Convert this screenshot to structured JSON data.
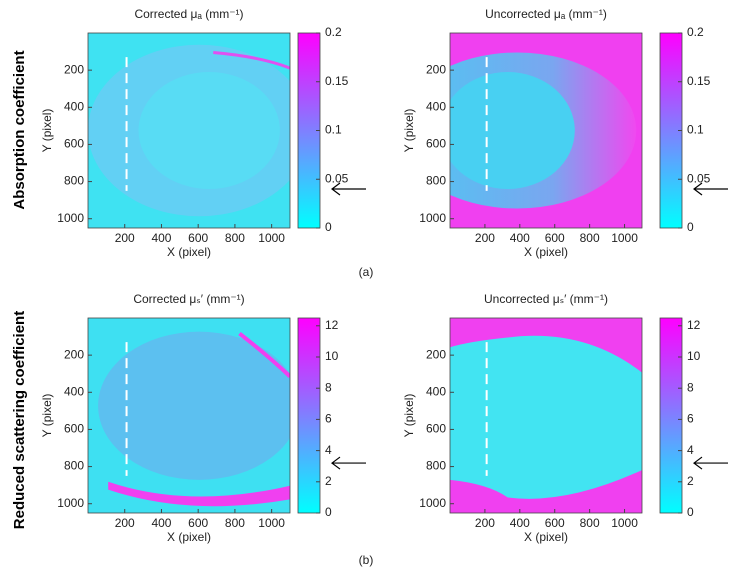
{
  "row_labels": [
    "Absorption coefficient",
    "Reduced scattering coefficient"
  ],
  "captions": [
    "(a)",
    "(b)"
  ],
  "chart_data": [
    {
      "type": "image",
      "title": "Corrected μₐ (mm⁻¹)",
      "xlabel": "X (pixel)",
      "ylabel": "Y (pixel)",
      "xlim": [
        0,
        1100
      ],
      "ylim": [
        0,
        1050
      ],
      "y_inverted": true,
      "xticks": [
        200,
        400,
        600,
        800,
        1000
      ],
      "yticks": [
        200,
        400,
        600,
        800,
        1000
      ],
      "colorbar": {
        "lim": [
          0,
          0.2
        ],
        "ticks": [
          0,
          0.05,
          0.1,
          0.15,
          0.2
        ],
        "colors": [
          "#00ffff",
          "#ff00ff"
        ]
      },
      "dashed_line": {
        "x": 210,
        "y": [
          130,
          850
        ]
      },
      "arrow_value": 0.04
    },
    {
      "type": "image",
      "title": "Uncorrected μₐ (mm⁻¹)",
      "xlabel": "X (pixel)",
      "ylabel": "Y (pixel)",
      "xlim": [
        0,
        1100
      ],
      "ylim": [
        0,
        1050
      ],
      "y_inverted": true,
      "xticks": [
        200,
        400,
        600,
        800,
        1000
      ],
      "yticks": [
        200,
        400,
        600,
        800,
        1000
      ],
      "colorbar": {
        "lim": [
          0,
          0.2
        ],
        "ticks": [
          0,
          0.05,
          0.1,
          0.15,
          0.2
        ],
        "colors": [
          "#00ffff",
          "#ff00ff"
        ]
      },
      "dashed_line": {
        "x": 210,
        "y": [
          130,
          850
        ]
      },
      "arrow_value": 0.04
    },
    {
      "type": "image",
      "title": "Corrected μₛ′ (mm⁻¹)",
      "xlabel": "X (pixel)",
      "ylabel": "Y (pixel)",
      "xlim": [
        0,
        1100
      ],
      "ylim": [
        0,
        1050
      ],
      "y_inverted": true,
      "xticks": [
        200,
        400,
        600,
        800,
        1000
      ],
      "yticks": [
        200,
        400,
        600,
        800,
        1000
      ],
      "colorbar": {
        "lim": [
          0,
          12.5
        ],
        "ticks": [
          0,
          2,
          4,
          6,
          8,
          10,
          12
        ],
        "colors": [
          "#00ffff",
          "#ff00ff"
        ]
      },
      "dashed_line": {
        "x": 210,
        "y": [
          130,
          850
        ]
      },
      "arrow_value": 3.2
    },
    {
      "type": "image",
      "title": "Uncorrected μₛ′ (mm⁻¹)",
      "xlabel": "X (pixel)",
      "ylabel": "Y (pixel)",
      "xlim": [
        0,
        1100
      ],
      "ylim": [
        0,
        1050
      ],
      "y_inverted": true,
      "xticks": [
        200,
        400,
        600,
        800,
        1000
      ],
      "yticks": [
        200,
        400,
        600,
        800,
        1000
      ],
      "colorbar": {
        "lim": [
          0,
          12.5
        ],
        "ticks": [
          0,
          2,
          4,
          6,
          8,
          10,
          12
        ],
        "colors": [
          "#00ffff",
          "#ff00ff"
        ]
      },
      "dashed_line": {
        "x": 210,
        "y": [
          130,
          850
        ]
      },
      "arrow_value": 3.2
    }
  ]
}
